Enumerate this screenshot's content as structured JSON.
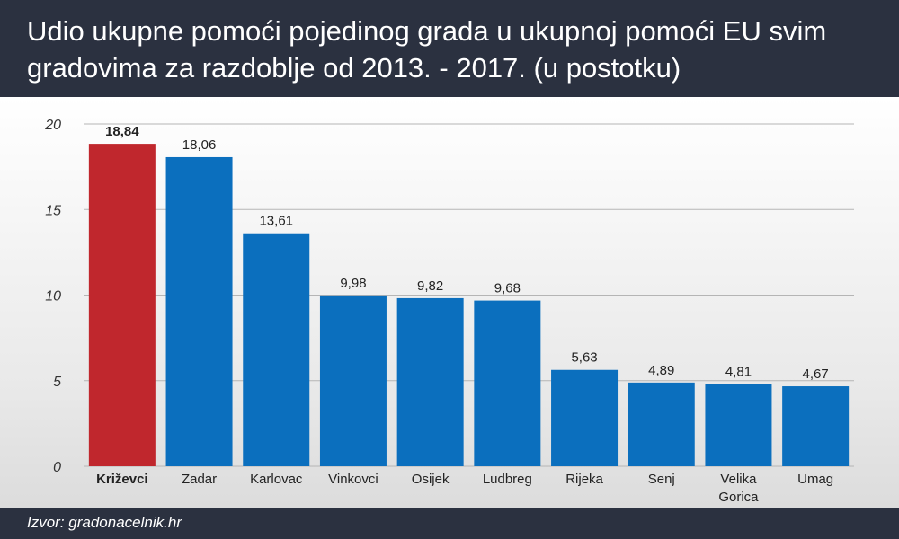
{
  "header": {
    "title_line1": "Udio ukupne pomoći pojedinog grada u ukupnoj pomoći EU svim",
    "title_line2": "gradovima za razdoblje od 2013. - 2017. (u postotku)"
  },
  "footer": {
    "source": "Izvor: gradonacelnik.hr"
  },
  "colors": {
    "highlight": "#c0272d",
    "bar": "#0b6fbe",
    "header_bg": "#2b3140",
    "grid": "#b5b5b5"
  },
  "chart_data": {
    "type": "bar",
    "categories": [
      "Križevci",
      "Zadar",
      "Karlovac",
      "Vinkovci",
      "Osijek",
      "Ludbreg",
      "Rijeka",
      "Senj",
      "Velika Gorica",
      "Umag"
    ],
    "category_lines": [
      [
        "Križevci"
      ],
      [
        "Zadar"
      ],
      [
        "Karlovac"
      ],
      [
        "Vinkovci"
      ],
      [
        "Osijek"
      ],
      [
        "Ludbreg"
      ],
      [
        "Rijeka"
      ],
      [
        "Senj"
      ],
      [
        "Velika",
        "Gorica"
      ],
      [
        "Umag"
      ]
    ],
    "values": [
      18.84,
      18.06,
      13.61,
      9.98,
      9.82,
      9.68,
      5.63,
      4.89,
      4.81,
      4.67
    ],
    "value_labels": [
      "18,84",
      "18,06",
      "13,61",
      "9,98",
      "9,82",
      "9,68",
      "5,63",
      "4,89",
      "4,81",
      "4,67"
    ],
    "highlight_index": 0,
    "ylim": [
      0,
      20
    ],
    "yticks": [
      0,
      5,
      10,
      15,
      20
    ],
    "grid": true,
    "title": "Udio ukupne pomoći pojedinog grada u ukupnoj pomoći EU svim gradovima za razdoblje od 2013. - 2017. (u postotku)"
  }
}
